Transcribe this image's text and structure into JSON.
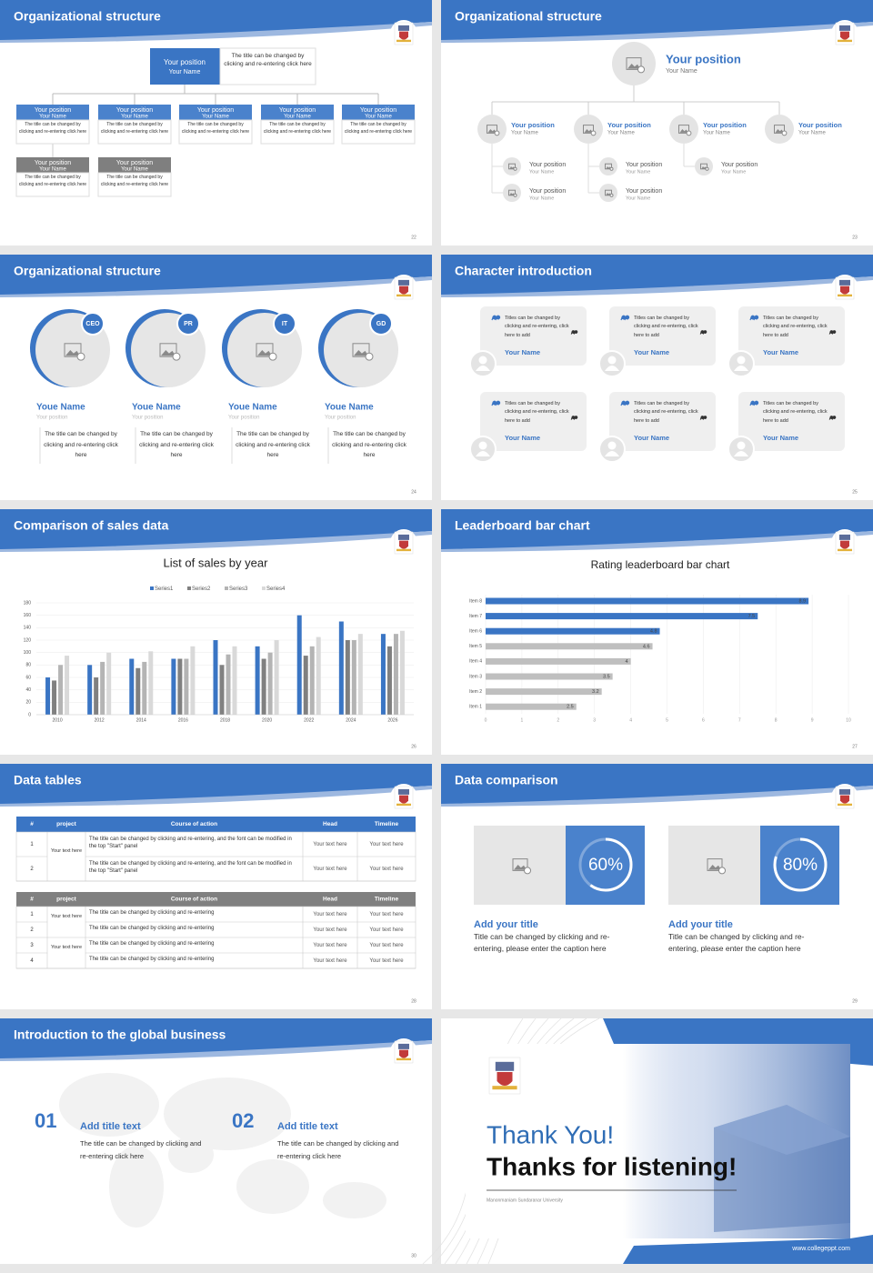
{
  "slides": [
    {
      "title": "Organizational structure",
      "page": "22",
      "head": {
        "position": "Your position",
        "name": "Your Name",
        "note": "The title can be changed by clicking and re-entering click here"
      },
      "boxes": [
        {
          "position": "Your position",
          "name": "Your Name",
          "note": "The title can be changed by clicking and re-entering click here"
        },
        {
          "position": "Your position",
          "name": "Your Name",
          "note": "The title can be changed by clicking and re-entering click here"
        },
        {
          "position": "Your position",
          "name": "Your Name",
          "note": "The title can be changed by clicking and re-entering click here"
        },
        {
          "position": "Your position",
          "name": "Your Name",
          "note": "The title can be changed by clicking and re-entering click here"
        },
        {
          "position": "Your position",
          "name": "Your Name",
          "note": "The title can be changed by clicking and re-entering click here"
        },
        {
          "position": "Your position",
          "name": "Your Name",
          "note": "The title can be changed by clicking and re-entering click here"
        },
        {
          "position": "Your position",
          "name": "Your Name",
          "note": "The title can be changed by clicking and re-entering click here"
        }
      ]
    },
    {
      "title": "Organizational structure",
      "page": "23",
      "head": {
        "position": "Your position",
        "name": "Your Name"
      },
      "members": [
        {
          "position": "Your position",
          "name": "Your Name"
        },
        {
          "position": "Your position",
          "name": "Your Name"
        },
        {
          "position": "Your position",
          "name": "Your Name"
        },
        {
          "position": "Your position",
          "name": "Your Name"
        }
      ],
      "subordinates": [
        {
          "position": "Your position",
          "name": "Your Name"
        },
        {
          "position": "Your position",
          "name": "Your Name"
        },
        {
          "position": "Your position",
          "name": "Your Name"
        },
        {
          "position": "Your position",
          "name": "Your Name"
        },
        {
          "position": "Your position",
          "name": "Your Name"
        }
      ]
    },
    {
      "title": "Organizational structure",
      "page": "24",
      "people": [
        {
          "badge": "CEO",
          "name": "Youe Name",
          "role": "Your position",
          "note": "The title can be changed by clicking and re-entering click here"
        },
        {
          "badge": "PR",
          "name": "Youe Name",
          "role": "Your position",
          "note": "The title can be changed by clicking and re-entering click here"
        },
        {
          "badge": "IT",
          "name": "Youe Name",
          "role": "Your position",
          "note": "The title can be changed by clicking and re-entering click here"
        },
        {
          "badge": "GD",
          "name": "Youe Name",
          "role": "Your position",
          "note": "The title can be changed by clicking and re-entering click here"
        }
      ]
    },
    {
      "title": "Character introduction",
      "page": "25",
      "cards": [
        {
          "quote": "Titles can be changed by clicking and re-entering, click here to add",
          "name": "Your Name"
        },
        {
          "quote": "Titles can be changed by clicking and re-entering, click here to add",
          "name": "Your Name"
        },
        {
          "quote": "Titles can be changed by clicking and re-entering, click here to add",
          "name": "Your Name"
        },
        {
          "quote": "Titles can be changed by clicking and re-entering, click here to add",
          "name": "Your Name"
        },
        {
          "quote": "Titles can be changed by clicking and re-entering, click here to add",
          "name": "Your Name"
        },
        {
          "quote": "Titles can be changed by clicking and re-entering, click here to add",
          "name": "Your Name"
        }
      ]
    },
    {
      "title": "Comparison of sales data",
      "page": "26"
    },
    {
      "title": "Leaderboard bar chart",
      "page": "27"
    },
    {
      "title": "Data tables",
      "page": "28",
      "tables": [
        {
          "header": [
            "#",
            "project",
            "Course of action",
            "Head",
            "Timeline"
          ],
          "groups": [
            {
              "project": "Your text here",
              "rows": [
                [
                  "1",
                  "The title can be changed by clicking and re-entering, and the font can be modified in the top \"Start\" panel",
                  "Your text here",
                  "Your text here"
                ],
                [
                  "2",
                  "The title can be changed by clicking and re-entering, and the font can be modified in the top \"Start\" panel",
                  "Your text here",
                  "Your text here"
                ]
              ]
            }
          ]
        },
        {
          "header": [
            "#",
            "project",
            "Course of action",
            "Head",
            "Timeline"
          ],
          "groups": [
            {
              "project": "Your text here",
              "rows": [
                [
                  "1",
                  "The title can be changed by clicking and re-entering",
                  "Your text here",
                  "Your text here"
                ],
                [
                  "2",
                  "The title can be changed by clicking and re-entering",
                  "Your text here",
                  "Your text here"
                ]
              ]
            },
            {
              "project": "Your text here",
              "rows": [
                [
                  "3",
                  "The title can be changed by clicking and re-entering",
                  "Your text here",
                  "Your text here"
                ],
                [
                  "4",
                  "The title can be changed by clicking and re-entering",
                  "Your text here",
                  "Your text here"
                ]
              ]
            }
          ]
        }
      ]
    },
    {
      "title": "Data comparison",
      "page": "29",
      "items": [
        {
          "percent": 60,
          "percent_label": "60%",
          "title": "Add your title",
          "text": "Title can be changed by clicking and re-entering, please enter the caption here"
        },
        {
          "percent": 80,
          "percent_label": "80%",
          "title": "Add your title",
          "text": "Title can be changed by clicking and re-entering, please enter the caption here"
        }
      ]
    },
    {
      "title": "Introduction to the global business",
      "page": "30",
      "items": [
        {
          "number": "01",
          "title": "Add title text",
          "text": "The title can be changed by clicking and re-entering click here"
        },
        {
          "number": "02",
          "title": "Add title text",
          "text": "The title can be changed by clicking and re-entering click here"
        }
      ]
    },
    {
      "thanks": "Thank You!",
      "subtitle": "Thanks for listening!",
      "university": "Manonmaniam Sundaranar University",
      "website": "www.collegeppt.com"
    }
  ],
  "chart_data": [
    {
      "type": "bar",
      "title": "List of sales by year",
      "categories": [
        "2010",
        "2012",
        "2014",
        "2016",
        "2018",
        "2020",
        "2022",
        "2024",
        "2026"
      ],
      "series": [
        {
          "name": "Series1",
          "color": "#3a75c4",
          "values": [
            60,
            80,
            90,
            90,
            120,
            110,
            160,
            150,
            130
          ]
        },
        {
          "name": "Series2",
          "color": "#808080",
          "values": [
            55,
            60,
            75,
            90,
            80,
            90,
            95,
            120,
            110
          ]
        },
        {
          "name": "Series3",
          "color": "#b4b4b4",
          "values": [
            80,
            85,
            85,
            90,
            97,
            100,
            110,
            120,
            130
          ]
        },
        {
          "name": "Series4",
          "color": "#d9d9d9",
          "values": [
            95,
            100,
            102,
            110,
            110,
            120,
            125,
            130,
            135
          ]
        }
      ],
      "ylim": [
        0,
        180
      ],
      "yticks": [
        0,
        20,
        40,
        60,
        80,
        100,
        120,
        140,
        160,
        180
      ],
      "grid": true,
      "legend": "top"
    },
    {
      "type": "barh",
      "title": "Rating leaderboard bar chart",
      "categories": [
        "Item 1",
        "Item 2",
        "Item 3",
        "Item 4",
        "Item 5",
        "Item 6",
        "Item 7",
        "Item 8"
      ],
      "values": [
        2.5,
        3.2,
        3.5,
        4,
        4.6,
        4.8,
        7.5,
        8.9
      ],
      "colors": [
        "#bfbfbf",
        "#bfbfbf",
        "#bfbfbf",
        "#bfbfbf",
        "#bfbfbf",
        "#3a75c4",
        "#3a75c4",
        "#3a75c4"
      ],
      "xlim": [
        0,
        10
      ],
      "xticks": [
        0,
        1,
        2,
        3,
        4,
        5,
        6,
        7,
        8,
        9,
        10
      ],
      "grid": true
    }
  ]
}
